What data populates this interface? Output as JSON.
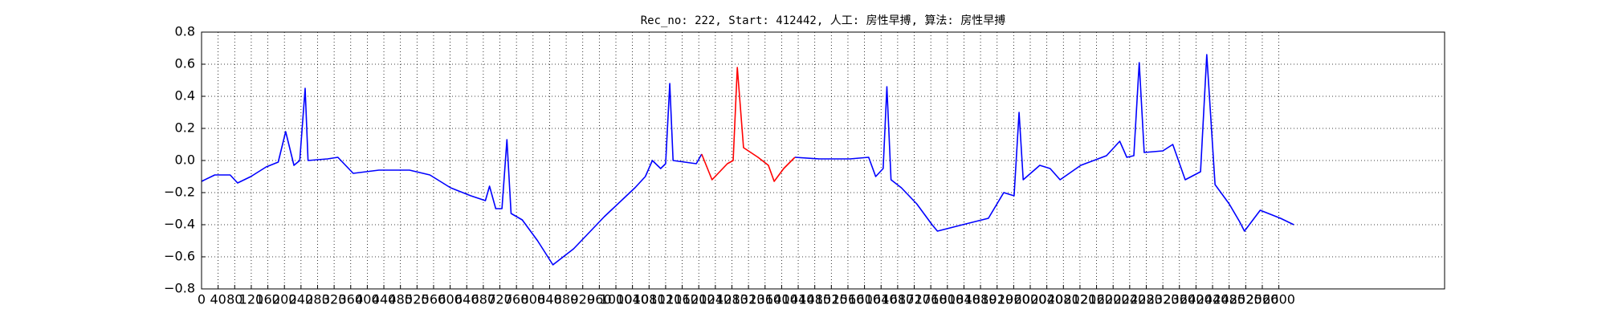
{
  "chart_data": {
    "type": "line",
    "title": "Rec_no: 222, Start: 412442, 人工: 房性早搏, 算法: 房性早搏",
    "x": [
      0,
      32,
      69,
      87,
      119,
      156,
      185,
      203,
      223,
      237,
      250,
      257,
      304,
      329,
      366,
      428,
      502,
      551,
      601,
      650,
      685,
      695,
      710,
      725,
      737,
      747,
      774,
      811,
      848,
      898,
      972,
      1046,
      1071,
      1088,
      1108,
      1120,
      1130,
      1138,
      1194,
      1207,
      1232,
      1269,
      1283,
      1293,
      1308,
      1343,
      1368,
      1382,
      1405,
      1432,
      1491,
      1565,
      1610,
      1627,
      1645,
      1654,
      1664,
      1689,
      1726,
      1763,
      1776,
      1837,
      1899,
      1936,
      1961,
      1973,
      1983,
      2023,
      2048,
      2072,
      2122,
      2184,
      2216,
      2233,
      2250,
      2263,
      2275,
      2320,
      2344,
      2374,
      2411,
      2426,
      2446,
      2480,
      2505,
      2517,
      2555,
      2604,
      2636
    ],
    "series": [
      {
        "color": "#0000ff",
        "values": [
          -0.13,
          -0.09,
          -0.09,
          -0.14,
          -0.1,
          -0.04,
          -0.01,
          0.18,
          -0.03,
          0.0,
          0.45,
          0.0,
          0.01,
          0.02,
          -0.08,
          -0.06,
          -0.06,
          -0.09,
          -0.17,
          -0.22,
          -0.25,
          -0.16,
          -0.3,
          -0.3,
          0.13,
          -0.33,
          -0.37,
          -0.5,
          -0.65,
          -0.55,
          -0.35,
          -0.17,
          -0.1,
          0.0,
          -0.05,
          -0.02,
          0.48,
          0.0,
          -0.02,
          0.04,
          null,
          null,
          null,
          null,
          null,
          null,
          null,
          null,
          null,
          0.02,
          0.01,
          0.01,
          0.02,
          -0.1,
          -0.05,
          0.46,
          -0.12,
          -0.17,
          -0.27,
          -0.4,
          -0.44,
          -0.4,
          -0.36,
          -0.2,
          -0.22,
          0.3,
          -0.12,
          -0.03,
          -0.05,
          -0.12,
          -0.03,
          0.03,
          0.12,
          0.02,
          0.03,
          0.61,
          0.05,
          0.06,
          0.1,
          -0.12,
          -0.07,
          0.66,
          -0.15,
          -0.27,
          -0.38,
          -0.44,
          -0.31,
          -0.36,
          -0.4
        ]
      },
      {
        "color": "#ff0000",
        "values": [
          null,
          null,
          null,
          null,
          null,
          null,
          null,
          null,
          null,
          null,
          null,
          null,
          null,
          null,
          null,
          null,
          null,
          null,
          null,
          null,
          null,
          null,
          null,
          null,
          null,
          null,
          null,
          null,
          null,
          null,
          null,
          null,
          null,
          null,
          null,
          null,
          null,
          null,
          null,
          0.04,
          -0.12,
          -0.02,
          0.0,
          0.58,
          0.08,
          0.02,
          -0.03,
          -0.13,
          -0.05,
          0.02,
          null,
          null,
          null,
          null,
          null,
          null,
          null,
          null,
          null,
          null,
          null,
          null,
          null,
          null,
          null,
          null,
          null,
          null,
          null,
          null,
          null,
          null,
          null,
          null,
          null,
          null,
          null,
          null,
          null,
          null,
          null,
          null,
          null,
          null,
          null,
          null,
          null,
          null,
          null
        ]
      }
    ],
    "xlim": [
      0,
      3000
    ],
    "xticks": [
      0,
      40,
      80,
      120,
      160,
      200,
      240,
      280,
      320,
      360,
      400,
      440,
      480,
      520,
      560,
      600,
      640,
      680,
      720,
      760,
      800,
      840,
      880,
      920,
      960,
      1000,
      1040,
      1080,
      1120,
      1160,
      1200,
      1240,
      1280,
      1320,
      1360,
      1400,
      1440,
      1480,
      1520,
      1560,
      1600,
      1640,
      1680,
      1720,
      1760,
      1800,
      1840,
      1880,
      1920,
      1960,
      2000,
      2040,
      2080,
      2120,
      2160,
      2200,
      2240,
      2280,
      2320,
      2360,
      2400,
      2440,
      2480,
      2520,
      2560,
      2600
    ],
    "ylim": [
      -0.8,
      0.8
    ],
    "yticks": [
      {
        "value": -0.8,
        "label": "−0.8"
      },
      {
        "value": -0.6,
        "label": "−0.6"
      },
      {
        "value": -0.4,
        "label": "−0.4"
      },
      {
        "value": -0.2,
        "label": "−0.2"
      },
      {
        "value": 0,
        "label": "0.0"
      },
      0.2,
      0.4,
      0.6,
      0.8
    ],
    "grid": true
  }
}
